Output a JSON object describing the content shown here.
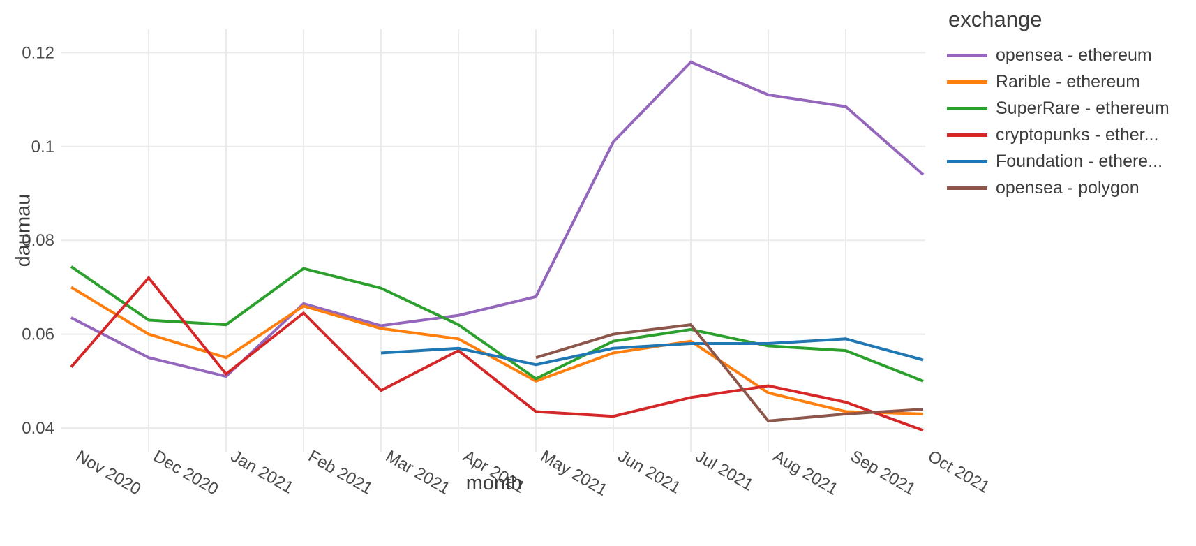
{
  "chart_data": {
    "type": "line",
    "title": "",
    "xlabel": "month",
    "ylabel": "daumau",
    "legend_title": "exchange",
    "legend_position": "right",
    "grid": true,
    "x": [
      "Nov 2020",
      "Dec 2020",
      "Jan 2021",
      "Feb 2021",
      "Mar 2021",
      "Apr 2021",
      "May 2021",
      "Jun 2021",
      "Jul 2021",
      "Aug 2021",
      "Sep 2021",
      "Oct 2021"
    ],
    "y_ticks": [
      0.04,
      0.06,
      0.08,
      0.1,
      0.12
    ],
    "y_tick_labels": [
      "0.04",
      "0.06",
      "0.08",
      "0.1",
      "0.12"
    ],
    "ylim": [
      0.0355,
      0.1255
    ],
    "series": [
      {
        "name": "opensea - ethereum",
        "color": "#9467bd",
        "values": [
          0.0635,
          0.055,
          0.051,
          0.0665,
          0.0618,
          0.064,
          0.068,
          0.101,
          0.118,
          0.111,
          0.1085,
          0.094
        ]
      },
      {
        "name": "Rarible - ethereum",
        "color": "#ff7f0e",
        "values": [
          0.07,
          0.06,
          0.055,
          0.066,
          0.0612,
          0.059,
          0.05,
          0.056,
          0.0585,
          0.0475,
          0.0435,
          0.043
        ]
      },
      {
        "name": "SuperRare - ethereum",
        "color": "#2ca02c",
        "values": [
          0.0744,
          0.063,
          0.062,
          0.074,
          0.0698,
          0.062,
          0.0505,
          0.0585,
          0.061,
          0.0575,
          0.0565,
          0.05
        ]
      },
      {
        "name": "cryptopunks - ether...",
        "color": "#d62728",
        "values": [
          0.053,
          0.072,
          0.0515,
          0.0645,
          0.048,
          0.0565,
          0.0435,
          0.0425,
          0.0465,
          0.049,
          0.0455,
          0.0395
        ]
      },
      {
        "name": "Foundation - ethere...",
        "color": "#1f77b4",
        "values": [
          null,
          null,
          null,
          null,
          0.056,
          0.057,
          0.0535,
          0.057,
          0.058,
          0.058,
          0.059,
          0.0545
        ]
      },
      {
        "name": "opensea - polygon",
        "color": "#8c564b",
        "values": [
          null,
          null,
          null,
          null,
          null,
          null,
          0.055,
          0.06,
          0.062,
          0.0415,
          0.043,
          0.044
        ]
      }
    ],
    "colors": {
      "background": "#ffffff",
      "grid": "#ebebeb",
      "title_text": "#3d3d3d",
      "tick_text": "#4a4a4a"
    }
  }
}
